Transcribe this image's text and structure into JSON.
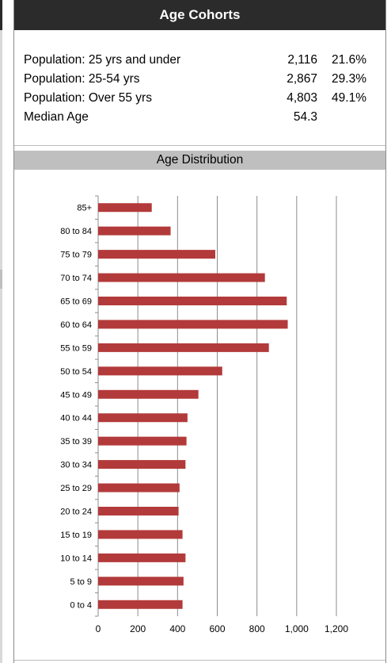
{
  "header": {
    "title": "Age Cohorts"
  },
  "stats": [
    {
      "label": "Population: 25 yrs and under",
      "count": "2,116",
      "pct": "21.6%"
    },
    {
      "label": "Population: 25-54 yrs",
      "count": "2,867",
      "pct": "29.3%"
    },
    {
      "label": "Population: Over 55 yrs",
      "count": "4,803",
      "pct": "49.1%"
    },
    {
      "label": "Median Age",
      "count": "54.3",
      "pct": ""
    }
  ],
  "section": {
    "title": "Age Distribution"
  },
  "colors": {
    "bar": "#b33a3a",
    "header_bg": "#2b2b2b",
    "subheader_bg": "#bfbfbf",
    "grid": "#8c8c8c"
  },
  "chart_data": {
    "type": "bar",
    "orientation": "horizontal",
    "categories": [
      "85+",
      "80 to 84",
      "75 to 79",
      "70 to 74",
      "65 to 69",
      "60 to 64",
      "55 to 59",
      "50 to 54",
      "45 to 49",
      "40 to 44",
      "35 to 39",
      "30 to 34",
      "25 to 29",
      "20 to 24",
      "15 to 19",
      "10 to 14",
      "5 to 9",
      "0 to 4"
    ],
    "values": [
      270,
      365,
      590,
      840,
      950,
      955,
      860,
      625,
      505,
      450,
      445,
      440,
      410,
      405,
      425,
      440,
      430,
      425
    ],
    "xlim": [
      0,
      1200
    ],
    "xticks": [
      0,
      200,
      400,
      600,
      800,
      1000,
      1200
    ],
    "xtick_labels": [
      "0",
      "200",
      "400",
      "600",
      "800",
      "1,000",
      "1,200"
    ],
    "grid": "vertical",
    "legend": "none"
  }
}
